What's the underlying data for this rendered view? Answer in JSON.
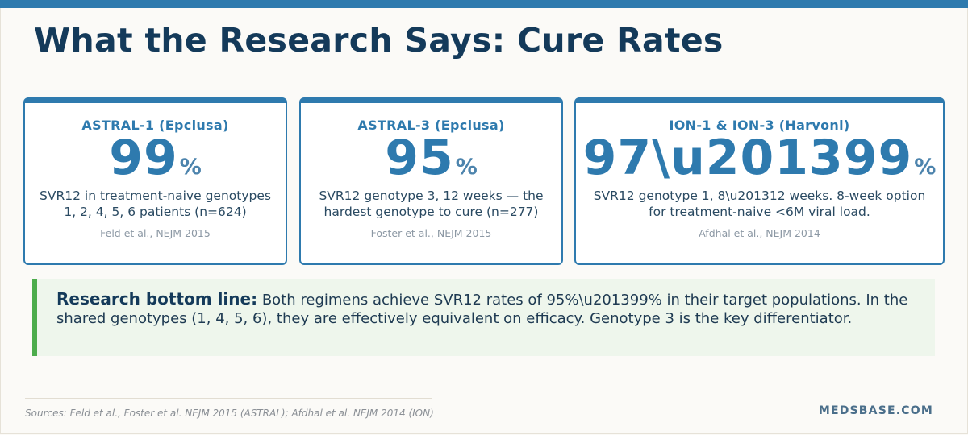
{
  "title": "What the Research Says: Cure Rates",
  "cards": [
    {
      "title": "ASTRAL-1 (Epclusa)",
      "value": "99",
      "unit": "%",
      "description": "SVR12 in treatment-naive genotypes 1, 2, 4, 5, 6 patients (n=624)",
      "source": "Feld et al., NEJM 2015"
    },
    {
      "title": "ASTRAL-3 (Epclusa)",
      "value": "95",
      "unit": "%",
      "description": "SVR12 genotype 3, 12 weeks — the hardest genotype to cure (n=277)",
      "source": "Foster et al., NEJM 2015"
    },
    {
      "title": "ION-1 & ION-3 (Harvoni)",
      "value": "97\\u201399",
      "unit": "%",
      "description": "SVR12 genotype 1, 8\\u201312 weeks. 8-week option for treatment-naive <6M viral load.",
      "source": "Afdhal et al., NEJM 2014"
    }
  ],
  "bottom_line": {
    "label": "Research bottom line:",
    "text": "Both regimens achieve SVR12 rates of 95%\\u201399% in their target populations. In the shared genotypes (1, 4, 5, 6), they are effectively equivalent on efficacy. Genotype 3 is the key differentiator."
  },
  "footer": {
    "sources": "Sources: Feld et al., Foster et al. NEJM 2015 (ASTRAL); Afdhal et al. NEJM 2014 (ION)",
    "brand": "MEDSBASE.COM"
  },
  "colors": {
    "accent": "#2e7aae",
    "title": "#143a5a",
    "callout_bar": "#4cac4c",
    "callout_bg": "#eef6ec"
  }
}
